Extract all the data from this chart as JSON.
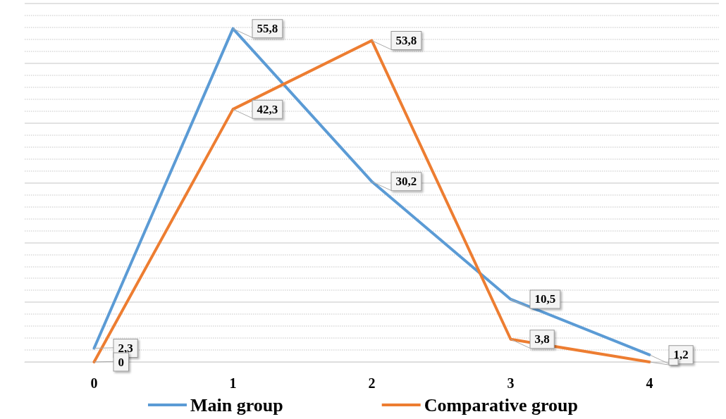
{
  "chart_data": {
    "type": "line",
    "categories": [
      "0",
      "1",
      "2",
      "3",
      "4"
    ],
    "series": [
      {
        "name": "Main group",
        "color": "#5b9bd5",
        "values": [
          2.3,
          55.8,
          30.2,
          10.5,
          1.2
        ],
        "value_labels": [
          "2,3",
          "55,8",
          "30,2",
          "10,5",
          "1,2"
        ]
      },
      {
        "name": "Comparative group",
        "color": "#ed7d31",
        "values": [
          0,
          42.3,
          53.8,
          3.8,
          0
        ],
        "value_labels": [
          "0",
          "42,3",
          "53,8",
          "3,8",
          null
        ]
      }
    ],
    "ylim": [
      0,
      60
    ],
    "yticks": [
      0,
      10,
      20,
      30,
      40,
      50,
      60
    ],
    "tick_labels": "x",
    "grid": true,
    "legend": "bottom",
    "marker": "none",
    "line_style": "solid"
  }
}
